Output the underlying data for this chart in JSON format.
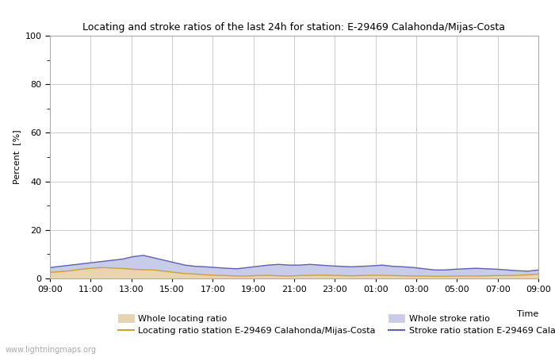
{
  "title": "Locating and stroke ratios of the last 24h for station: E-29469 Calahonda/Mijas-Costa",
  "ylabel": "Percent  [%]",
  "xlabel": "Time",
  "ylim": [
    0,
    100
  ],
  "yticks": [
    0,
    20,
    40,
    60,
    80,
    100
  ],
  "yticks_minor": [
    10,
    30,
    50,
    70,
    90
  ],
  "x_labels": [
    "09:00",
    "11:00",
    "13:00",
    "15:00",
    "17:00",
    "19:00",
    "21:00",
    "23:00",
    "01:00",
    "03:00",
    "05:00",
    "07:00",
    "09:00"
  ],
  "watermark": "www.lightningmaps.org",
  "bg_color": "#ffffff",
  "plot_bg_color": "#ffffff",
  "grid_color": "#cccccc",
  "whole_locating_fill": "#e8d5b0",
  "whole_stroke_fill": "#c8cce8",
  "locating_line_color": "#c8a040",
  "stroke_line_color": "#6060b0",
  "whole_locating_values": [
    2.5,
    2.8,
    3.2,
    3.8,
    4.2,
    4.5,
    4.3,
    4.1,
    3.8,
    3.6,
    3.5,
    3.0,
    2.5,
    2.0,
    1.8,
    1.5,
    1.3,
    1.2,
    1.0,
    1.0,
    1.2,
    1.3,
    1.1,
    1.0,
    1.2,
    1.3,
    1.4,
    1.3,
    1.2,
    1.1,
    1.2,
    1.3,
    1.3,
    1.2,
    1.1,
    1.0,
    1.0,
    0.9,
    0.9,
    1.0,
    1.0,
    1.0,
    1.1,
    1.2,
    1.2,
    1.3,
    1.5,
    1.8
  ],
  "whole_stroke_values": [
    4.5,
    5.0,
    5.5,
    6.0,
    6.5,
    7.0,
    7.5,
    8.0,
    9.0,
    9.5,
    8.5,
    7.5,
    6.5,
    5.5,
    5.0,
    4.8,
    4.5,
    4.2,
    4.0,
    4.5,
    5.0,
    5.5,
    5.8,
    5.5,
    5.5,
    5.8,
    5.5,
    5.2,
    5.0,
    4.8,
    5.0,
    5.2,
    5.5,
    5.0,
    4.8,
    4.5,
    4.0,
    3.5,
    3.5,
    3.8,
    4.0,
    4.2,
    4.0,
    3.8,
    3.5,
    3.2,
    3.0,
    3.5
  ],
  "locating_line_values": [
    2.5,
    2.8,
    3.2,
    3.8,
    4.2,
    4.5,
    4.3,
    4.1,
    3.8,
    3.6,
    3.5,
    3.0,
    2.5,
    2.0,
    1.8,
    1.5,
    1.3,
    1.2,
    1.0,
    1.0,
    1.2,
    1.3,
    1.1,
    1.0,
    1.2,
    1.3,
    1.4,
    1.3,
    1.2,
    1.1,
    1.2,
    1.3,
    1.3,
    1.2,
    1.1,
    1.0,
    1.0,
    0.9,
    0.9,
    1.0,
    1.0,
    1.0,
    1.1,
    1.2,
    1.2,
    1.3,
    1.5,
    1.8
  ],
  "stroke_line_values": [
    4.5,
    5.0,
    5.5,
    6.0,
    6.5,
    7.0,
    7.5,
    8.0,
    9.0,
    9.5,
    8.5,
    7.5,
    6.5,
    5.5,
    5.0,
    4.8,
    4.5,
    4.2,
    4.0,
    4.5,
    5.0,
    5.5,
    5.8,
    5.5,
    5.5,
    5.8,
    5.5,
    5.2,
    5.0,
    4.8,
    5.0,
    5.2,
    5.5,
    5.0,
    4.8,
    4.5,
    4.0,
    3.5,
    3.5,
    3.8,
    4.0,
    4.2,
    4.0,
    3.8,
    3.5,
    3.2,
    3.0,
    3.5
  ]
}
